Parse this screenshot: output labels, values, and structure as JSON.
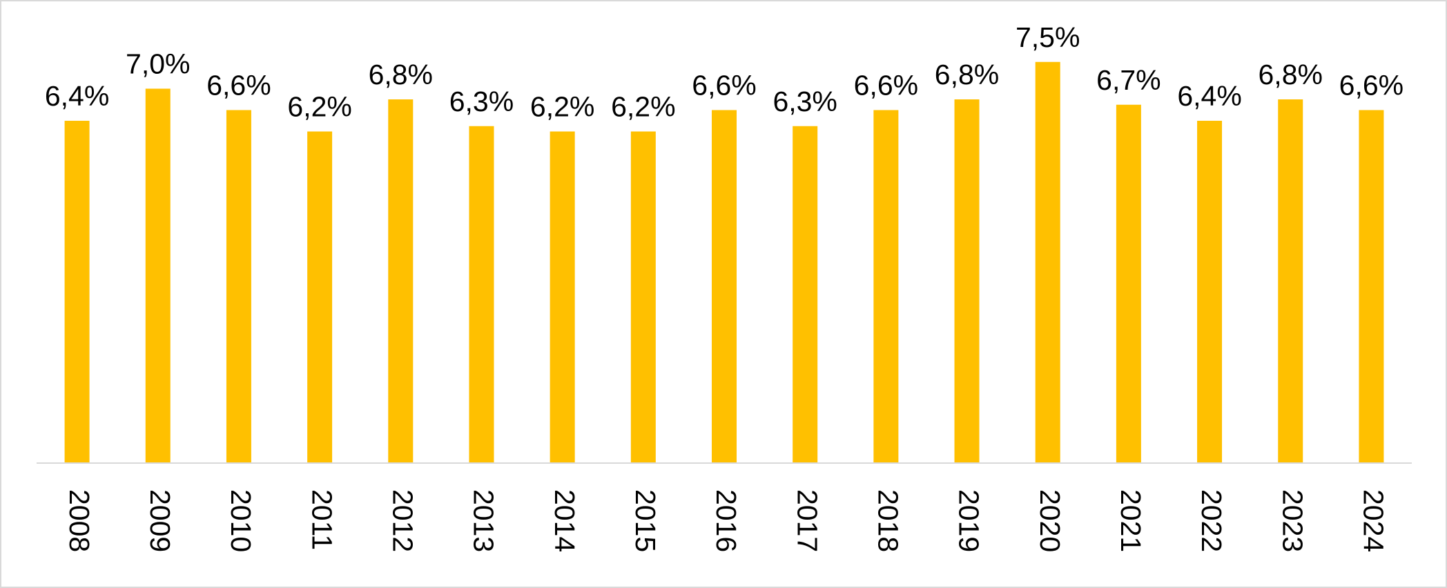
{
  "chart_data": {
    "type": "bar",
    "categories": [
      "2008",
      "2009",
      "2010",
      "2011",
      "2012",
      "2013",
      "2014",
      "2015",
      "2016",
      "2017",
      "2018",
      "2019",
      "2020",
      "2021",
      "2022",
      "2023",
      "2024"
    ],
    "values": [
      6.4,
      7.0,
      6.6,
      6.2,
      6.8,
      6.3,
      6.2,
      6.2,
      6.6,
      6.3,
      6.6,
      6.8,
      7.5,
      6.7,
      6.4,
      6.8,
      6.6
    ],
    "value_labels": [
      "6,4%",
      "7,0%",
      "6,6%",
      "6,2%",
      "6,8%",
      "6,3%",
      "6,2%",
      "6,2%",
      "6,6%",
      "6,3%",
      "6,6%",
      "6,8%",
      "7,5%",
      "6,7%",
      "6,4%",
      "6,8%",
      "6,6%"
    ],
    "color": "#ffc000",
    "ylim": [
      0,
      8
    ]
  }
}
